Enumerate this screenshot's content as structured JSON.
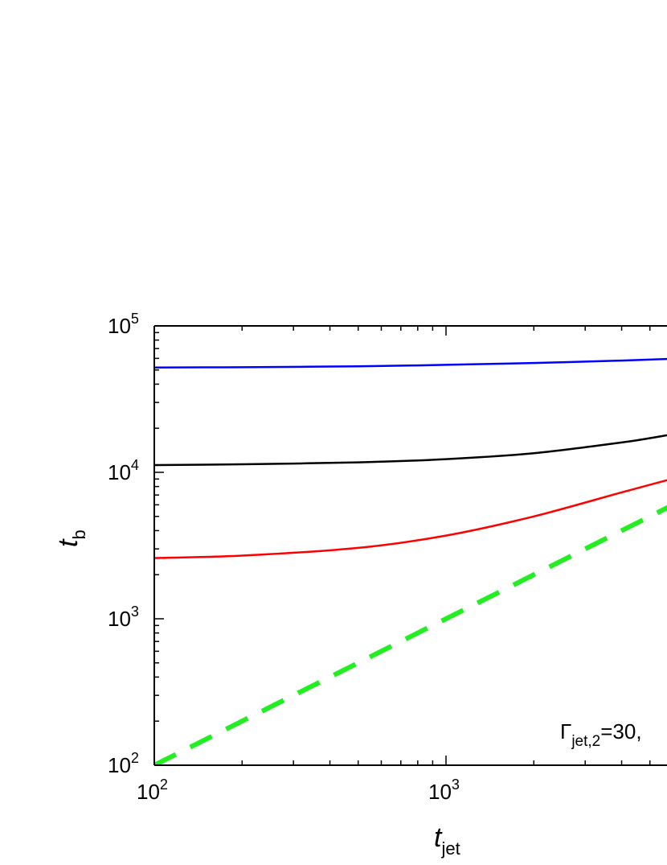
{
  "chart_data": {
    "type": "line",
    "x_scale": "log",
    "y_scale": "log",
    "xlim": [
      100,
      5800
    ],
    "ylim": [
      100,
      100000
    ],
    "x_ticks": [
      {
        "value": 100,
        "base": "10",
        "exp": "2"
      },
      {
        "value": 1000,
        "base": "10",
        "exp": "3"
      }
    ],
    "y_ticks": [
      {
        "value": 100,
        "base": "10",
        "exp": "2"
      },
      {
        "value": 1000,
        "base": "10",
        "exp": "3"
      },
      {
        "value": 10000,
        "base": "10",
        "exp": "4"
      },
      {
        "value": 100000,
        "base": "10",
        "exp": "5"
      }
    ],
    "xlabel": {
      "main": "t",
      "sub": "jet"
    },
    "ylabel": {
      "main": "t",
      "sub": "b"
    },
    "annotation": {
      "prefix": "Γ",
      "sub": "jet,2",
      "suffix": "=30,"
    },
    "series": [
      {
        "color": "#0000ff",
        "style": "solid",
        "points": [
          [
            100,
            52000
          ],
          [
            200,
            52200
          ],
          [
            500,
            53000
          ],
          [
            1000,
            54200
          ],
          [
            2000,
            55800
          ],
          [
            4000,
            58000
          ],
          [
            5800,
            59500
          ]
        ]
      },
      {
        "color": "#000000",
        "style": "solid",
        "points": [
          [
            100,
            11200
          ],
          [
            200,
            11350
          ],
          [
            500,
            11700
          ],
          [
            1000,
            12300
          ],
          [
            2000,
            13500
          ],
          [
            4000,
            16000
          ],
          [
            5800,
            18000
          ]
        ]
      },
      {
        "color": "#ff0000",
        "style": "solid",
        "points": [
          [
            100,
            2600
          ],
          [
            200,
            2700
          ],
          [
            500,
            3050
          ],
          [
            1000,
            3700
          ],
          [
            2000,
            5000
          ],
          [
            4000,
            7300
          ],
          [
            5800,
            8900
          ]
        ]
      },
      {
        "color": "#22ee22",
        "style": "dashed",
        "points": [
          [
            100,
            100
          ],
          [
            5800,
            5800
          ]
        ]
      }
    ]
  }
}
